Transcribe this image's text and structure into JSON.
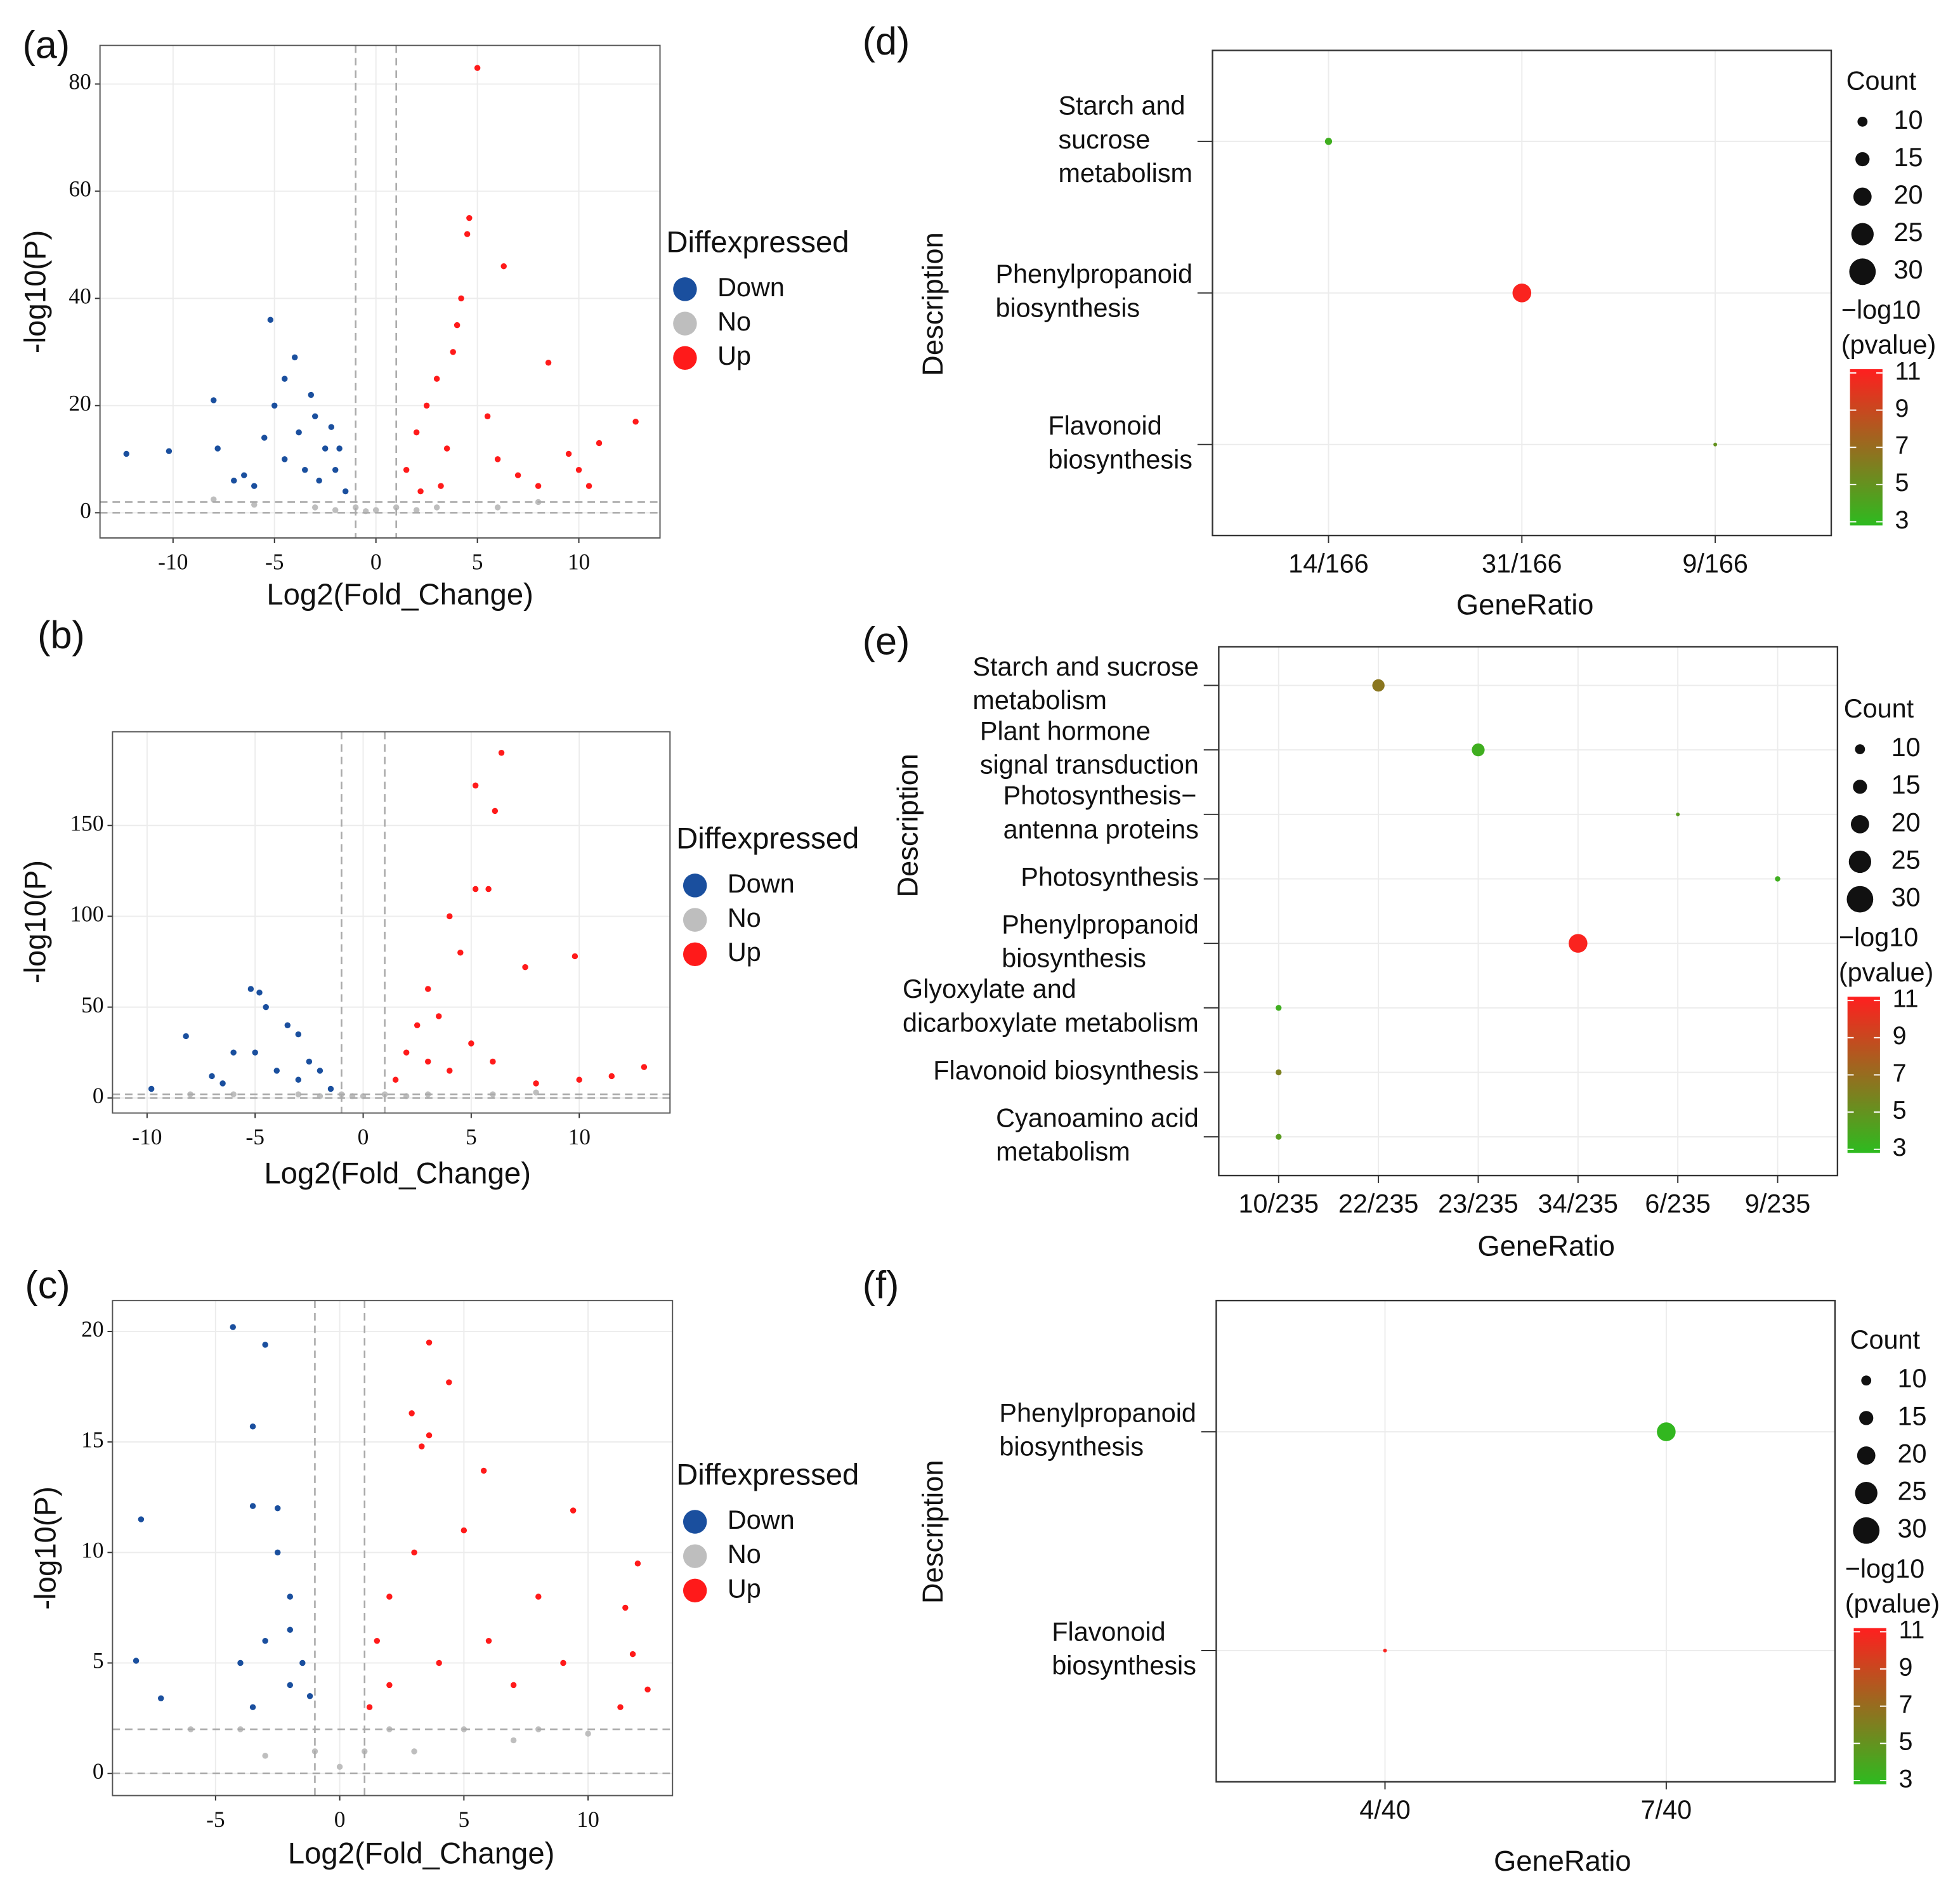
{
  "chart_data": [
    {
      "type": "scatter",
      "panel_label": "(a)",
      "xlabel": "Log2(Fold_Change)",
      "ylabel": "-log10(P)",
      "legend_title": "Diffexpressed",
      "xlim": [
        -13.6,
        14
      ],
      "ylim": [
        -4.7,
        87.2
      ],
      "xticks": [
        -10,
        -5,
        0,
        5,
        10
      ],
      "yticks": [
        0,
        20,
        40,
        60,
        80
      ],
      "grid": true,
      "vlines": [
        -1,
        1
      ],
      "hlines": [
        0,
        2
      ],
      "series": [
        {
          "name": "Down",
          "color": "#1a4f9e",
          "x": [
            -12.3,
            -10.2,
            -8,
            -7.8,
            -6.5,
            -5.2,
            -5,
            -4.5,
            -4,
            -3.8,
            -3,
            -2.5,
            -2,
            -1.5,
            -3.5,
            -6,
            -4.5,
            -2.8,
            -1.8,
            -3.2,
            -5.5,
            -7,
            -2.2
          ],
          "values": [
            11,
            11.5,
            21,
            12,
            7,
            36,
            20,
            25,
            29,
            15,
            18,
            12,
            8,
            4,
            8,
            5,
            10,
            6,
            12,
            22,
            14,
            6,
            16
          ]
        },
        {
          "name": "No",
          "color": "#bebebe",
          "x": [
            -1,
            0,
            1,
            -3,
            3,
            -6,
            6,
            8,
            -8,
            -0.5,
            2,
            -2
          ],
          "values": [
            1,
            0.5,
            1,
            1,
            1,
            1.5,
            1,
            2,
            2.5,
            0.3,
            0.5,
            0.5
          ]
        },
        {
          "name": "Up",
          "color": "#ff1a1a",
          "x": [
            5,
            4.6,
            4.5,
            6.3,
            4.2,
            3.8,
            8.5,
            12.8,
            11,
            10,
            8,
            3,
            2.5,
            2,
            1.5,
            3.5,
            5.5,
            6,
            4,
            2.2,
            7,
            9.5,
            10.5,
            3.2
          ],
          "values": [
            83,
            55,
            52,
            46,
            40,
            30,
            28,
            17,
            13,
            8,
            5,
            25,
            20,
            15,
            8,
            12,
            18,
            10,
            35,
            4,
            7,
            11,
            5,
            5
          ]
        }
      ]
    },
    {
      "type": "scatter",
      "panel_label": "(b)",
      "xlabel": "Log2(Fold_Change)",
      "ylabel": "-log10(P)",
      "legend_title": "Diffexpressed",
      "xlim": [
        -11.6,
        14.2
      ],
      "ylim": [
        -8.3,
        201.6
      ],
      "xticks": [
        -10,
        -5,
        0,
        5,
        10
      ],
      "yticks": [
        0,
        50,
        100,
        150
      ],
      "grid": true,
      "vlines": [
        -1,
        1
      ],
      "hlines": [
        0,
        2
      ],
      "series": [
        {
          "name": "Down",
          "color": "#1a4f9e",
          "x": [
            -9.8,
            -8.2,
            -7,
            -6,
            -5.2,
            -4.8,
            -4.5,
            -3.5,
            -3,
            -2.5,
            -2,
            -1.5,
            -4,
            -6.5,
            -3,
            -5
          ],
          "values": [
            5,
            34,
            12,
            25,
            60,
            58,
            50,
            40,
            35,
            20,
            15,
            5,
            15,
            8,
            10,
            25
          ]
        },
        {
          "name": "No",
          "color": "#bebebe",
          "x": [
            -1,
            0,
            1,
            -3,
            3,
            -6,
            6,
            8,
            -8,
            -0.5,
            2,
            -2
          ],
          "values": [
            2,
            1,
            2,
            2,
            2,
            2,
            2,
            3,
            2,
            1,
            1,
            1
          ]
        },
        {
          "name": "Up",
          "color": "#ff1a1a",
          "x": [
            6.4,
            5.2,
            6.1,
            5.2,
            5.8,
            4,
            9.8,
            7.5,
            4.5,
            3,
            2.5,
            2,
            1.5,
            3.5,
            5,
            6,
            13,
            11.5,
            8,
            10,
            4,
            3
          ],
          "values": [
            190,
            172,
            158,
            115,
            115,
            100,
            78,
            72,
            80,
            60,
            40,
            25,
            10,
            45,
            30,
            20,
            17,
            12,
            8,
            10,
            15,
            20
          ]
        }
      ]
    },
    {
      "type": "scatter",
      "panel_label": "(c)",
      "xlabel": "Log2(Fold_Change)",
      "ylabel": "-log10(P)",
      "legend_title": "Diffexpressed",
      "xlim": [
        -9.15,
        13.4
      ],
      "ylim": [
        -1.0,
        21.4
      ],
      "xticks": [
        -5,
        0,
        5,
        10
      ],
      "yticks": [
        0,
        5,
        10,
        15,
        20
      ],
      "grid": true,
      "vlines": [
        -1,
        1
      ],
      "hlines": [
        0,
        2
      ],
      "series": [
        {
          "name": "Down",
          "color": "#1a4f9e",
          "x": [
            -8,
            -8.2,
            -7.2,
            -4.3,
            -3,
            -3.5,
            -3.5,
            -2.5,
            -2,
            -3,
            -2,
            -1.5,
            -4,
            -2.5,
            -1.2,
            -3.5,
            -2
          ],
          "values": [
            11.5,
            5.1,
            3.4,
            20.2,
            19.4,
            15.7,
            12.1,
            12,
            8,
            6,
            4,
            5,
            5,
            10,
            3.5,
            3,
            6.5
          ]
        },
        {
          "name": "No",
          "color": "#bebebe",
          "x": [
            -6,
            -4,
            0,
            2,
            5,
            8,
            10,
            -1,
            1,
            -3,
            3,
            7
          ],
          "values": [
            2,
            2,
            0.3,
            2,
            2,
            2,
            1.8,
            1,
            1,
            0.8,
            1,
            1.5
          ]
        },
        {
          "name": "Up",
          "color": "#ff1a1a",
          "x": [
            3.6,
            4.4,
            2.9,
            3.6,
            3.3,
            5.8,
            9.4,
            12,
            11.5,
            11.8,
            12.4,
            11.3,
            2,
            3,
            1.5,
            4,
            6,
            8,
            5,
            2,
            7,
            9,
            1.2
          ],
          "values": [
            19.5,
            17.7,
            16.3,
            15.3,
            14.8,
            13.7,
            11.9,
            9.5,
            7.5,
            5.4,
            3.8,
            3,
            8,
            10,
            6,
            5,
            6,
            8,
            11,
            4,
            4,
            5,
            3
          ]
        }
      ]
    },
    {
      "type": "dot",
      "panel_label": "(d)",
      "xlabel": "GeneRatio",
      "ylabel": "Description",
      "categories": [
        [
          "Starch and",
          "sucrose",
          "metabolism"
        ],
        [
          "Phenylpropanoid",
          "biosynthesis"
        ],
        [
          "Flavonoid",
          "biosynthesis"
        ]
      ],
      "gene_ratio": [
        "14/166",
        "31/166",
        "9/166"
      ],
      "count": [
        14,
        31,
        9
      ],
      "neg_log10_pvalue": [
        3.5,
        11,
        5
      ],
      "size_legend_title": "Count",
      "size_legend": [
        10,
        15,
        20,
        25,
        30
      ],
      "color_legend_title": [
        "−log10",
        "(pvalue)"
      ],
      "clim": [
        2.8,
        11.2
      ],
      "color_ticks": [
        3,
        5,
        7,
        9,
        11
      ],
      "color_low": "#2dbb1f",
      "color_high": "#ff1f1f",
      "grid": true
    },
    {
      "type": "dot",
      "panel_label": "(e)",
      "xlabel": "GeneRatio",
      "ylabel": "Description",
      "categories": [
        [
          "Starch and sucrose",
          "metabolism"
        ],
        [
          "Plant hormone",
          "signal transduction"
        ],
        [
          "Photosynthesis−",
          "antenna proteins"
        ],
        [
          "Photosynthesis"
        ],
        [
          "Phenylpropanoid",
          "biosynthesis"
        ],
        [
          "Glyoxylate and",
          "dicarboxylate metabolism"
        ],
        [
          "Flavonoid biosynthesis"
        ],
        [
          "Cyanoamino acid",
          "metabolism"
        ]
      ],
      "gene_ratio": [
        "22/235",
        "23/235",
        "6/235",
        "9/235",
        "34/235",
        "10/235",
        "10/235",
        "10/235"
      ],
      "count": [
        22,
        23,
        6,
        9,
        34,
        10,
        10,
        10
      ],
      "neg_log10_pvalue": [
        6.5,
        3.5,
        4.5,
        3.5,
        11,
        3.5,
        6,
        4.5
      ],
      "size_legend_title": "Count",
      "size_legend": [
        10,
        15,
        20,
        25,
        30
      ],
      "color_legend_title": [
        "−log10",
        "(pvalue)"
      ],
      "clim": [
        2.8,
        11.2
      ],
      "color_ticks": [
        3,
        5,
        7,
        9,
        11
      ],
      "color_low": "#2dbb1f",
      "color_high": "#ff1f1f",
      "grid": true
    },
    {
      "type": "dot",
      "panel_label": "(f)",
      "xlabel": "GeneRatio",
      "ylabel": "Description",
      "categories": [
        [
          "Phenylpropanoid",
          "biosynthesis"
        ],
        [
          "Flavonoid",
          "biosynthesis"
        ]
      ],
      "gene_ratio": [
        "7/40",
        "4/40"
      ],
      "count": [
        7,
        4
      ],
      "neg_log10_pvalue": [
        3,
        11
      ],
      "size_legend_title": "Count",
      "size_legend": [
        10,
        15,
        20,
        25,
        30
      ],
      "color_legend_title": [
        "−log10",
        "(pvalue)"
      ],
      "clim": [
        2.8,
        11.2
      ],
      "color_ticks": [
        3,
        5,
        7,
        9,
        11
      ],
      "color_low": "#2dbb1f",
      "color_high": "#ff1f1f",
      "grid": true
    }
  ]
}
